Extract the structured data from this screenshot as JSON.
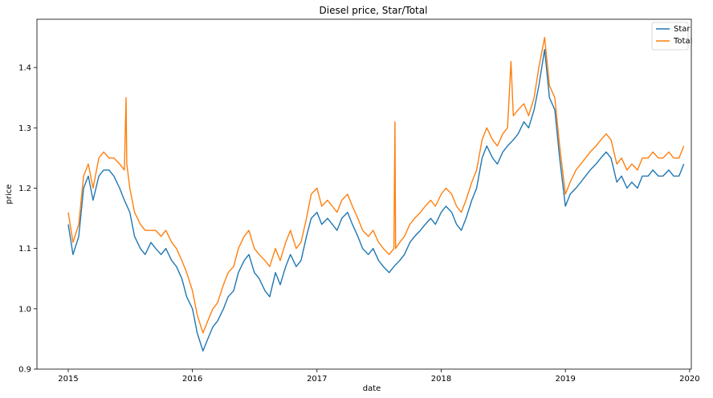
{
  "chart_data": {
    "type": "line",
    "title": "Diesel price, Star/Total",
    "xlabel": "date",
    "ylabel": "price",
    "xlim": [
      "2014-10-01",
      "2020-01-06"
    ],
    "ylim": [
      0.9,
      1.48
    ],
    "xticks": [
      "2015",
      "2016",
      "2017",
      "2018",
      "2019",
      "2020"
    ],
    "yticks": [
      "0.9",
      "1.0",
      "1.1",
      "1.2",
      "1.3",
      "1.4"
    ],
    "grid": false,
    "legend_position": "top-right",
    "series": [
      {
        "name": "Star",
        "color": "#1f77b4",
        "x": [
          "2015-01-01",
          "2015-01-15",
          "2015-02-01",
          "2015-02-15",
          "2015-03-01",
          "2015-03-15",
          "2015-04-01",
          "2015-04-15",
          "2015-05-01",
          "2015-05-15",
          "2015-06-01",
          "2015-06-15",
          "2015-07-01",
          "2015-07-15",
          "2015-08-01",
          "2015-08-15",
          "2015-09-01",
          "2015-09-15",
          "2015-10-01",
          "2015-10-15",
          "2015-11-01",
          "2015-11-15",
          "2015-12-01",
          "2015-12-15",
          "2016-01-01",
          "2016-01-15",
          "2016-02-01",
          "2016-02-15",
          "2016-03-01",
          "2016-03-15",
          "2016-04-01",
          "2016-04-15",
          "2016-05-01",
          "2016-05-15",
          "2016-06-01",
          "2016-06-15",
          "2016-07-01",
          "2016-07-15",
          "2016-08-01",
          "2016-08-15",
          "2016-09-01",
          "2016-09-15",
          "2016-10-01",
          "2016-10-15",
          "2016-11-01",
          "2016-11-15",
          "2016-12-01",
          "2016-12-15",
          "2017-01-01",
          "2017-01-15",
          "2017-02-01",
          "2017-02-15",
          "2017-03-01",
          "2017-03-15",
          "2017-04-01",
          "2017-04-15",
          "2017-05-01",
          "2017-05-15",
          "2017-06-01",
          "2017-06-15",
          "2017-07-01",
          "2017-07-15",
          "2017-08-01",
          "2017-08-15",
          "2017-09-01",
          "2017-09-15",
          "2017-10-01",
          "2017-10-15",
          "2017-11-01",
          "2017-11-15",
          "2017-12-01",
          "2017-12-15",
          "2018-01-01",
          "2018-01-15",
          "2018-02-01",
          "2018-02-15",
          "2018-03-01",
          "2018-03-15",
          "2018-04-01",
          "2018-04-15",
          "2018-05-01",
          "2018-05-15",
          "2018-06-01",
          "2018-06-15",
          "2018-07-01",
          "2018-07-15",
          "2018-08-01",
          "2018-08-15",
          "2018-09-01",
          "2018-09-15",
          "2018-10-01",
          "2018-10-15",
          "2018-11-01",
          "2018-11-15",
          "2018-12-01",
          "2018-12-15",
          "2019-01-01",
          "2019-01-15",
          "2019-02-01",
          "2019-02-15",
          "2019-03-01",
          "2019-03-15",
          "2019-04-01",
          "2019-04-15",
          "2019-05-01",
          "2019-05-15",
          "2019-06-01",
          "2019-06-15",
          "2019-07-01",
          "2019-07-15",
          "2019-08-01",
          "2019-08-15",
          "2019-09-01",
          "2019-09-15",
          "2019-10-01",
          "2019-10-15",
          "2019-11-01",
          "2019-11-15",
          "2019-12-01",
          "2019-12-15"
        ],
        "y": [
          1.14,
          1.09,
          1.12,
          1.2,
          1.22,
          1.18,
          1.22,
          1.23,
          1.23,
          1.22,
          1.2,
          1.18,
          1.16,
          1.12,
          1.1,
          1.09,
          1.11,
          1.1,
          1.09,
          1.1,
          1.08,
          1.07,
          1.05,
          1.02,
          1.0,
          0.96,
          0.93,
          0.95,
          0.97,
          0.98,
          1.0,
          1.02,
          1.03,
          1.06,
          1.08,
          1.09,
          1.06,
          1.05,
          1.03,
          1.02,
          1.06,
          1.04,
          1.07,
          1.09,
          1.07,
          1.08,
          1.12,
          1.15,
          1.16,
          1.14,
          1.15,
          1.14,
          1.13,
          1.15,
          1.16,
          1.14,
          1.12,
          1.1,
          1.09,
          1.1,
          1.08,
          1.07,
          1.06,
          1.07,
          1.08,
          1.09,
          1.11,
          1.12,
          1.13,
          1.14,
          1.15,
          1.14,
          1.16,
          1.17,
          1.16,
          1.14,
          1.13,
          1.15,
          1.18,
          1.2,
          1.25,
          1.27,
          1.25,
          1.24,
          1.26,
          1.27,
          1.28,
          1.29,
          1.31,
          1.3,
          1.33,
          1.37,
          1.43,
          1.35,
          1.33,
          1.25,
          1.17,
          1.19,
          1.2,
          1.21,
          1.22,
          1.23,
          1.24,
          1.25,
          1.26,
          1.25,
          1.21,
          1.22,
          1.2,
          1.21,
          1.2,
          1.22,
          1.22,
          1.23,
          1.22,
          1.22,
          1.23,
          1.22,
          1.22,
          1.24
        ]
      },
      {
        "name": "Total",
        "color": "#ff7f0e",
        "x": [
          "2015-01-01",
          "2015-01-15",
          "2015-02-01",
          "2015-02-15",
          "2015-03-01",
          "2015-03-15",
          "2015-04-01",
          "2015-04-15",
          "2015-05-01",
          "2015-05-15",
          "2015-06-01",
          "2015-06-15",
          "2015-06-20",
          "2015-06-22",
          "2015-07-01",
          "2015-07-15",
          "2015-08-01",
          "2015-08-15",
          "2015-09-01",
          "2015-09-15",
          "2015-10-01",
          "2015-10-15",
          "2015-11-01",
          "2015-11-15",
          "2015-12-01",
          "2015-12-15",
          "2016-01-01",
          "2016-01-15",
          "2016-02-01",
          "2016-02-15",
          "2016-03-01",
          "2016-03-15",
          "2016-04-01",
          "2016-04-15",
          "2016-05-01",
          "2016-05-15",
          "2016-06-01",
          "2016-06-15",
          "2016-07-01",
          "2016-07-15",
          "2016-08-01",
          "2016-08-15",
          "2016-09-01",
          "2016-09-15",
          "2016-10-01",
          "2016-10-15",
          "2016-11-01",
          "2016-11-15",
          "2016-12-01",
          "2016-12-15",
          "2017-01-01",
          "2017-01-15",
          "2017-02-01",
          "2017-02-15",
          "2017-03-01",
          "2017-03-15",
          "2017-04-01",
          "2017-04-15",
          "2017-05-01",
          "2017-05-15",
          "2017-06-01",
          "2017-06-15",
          "2017-07-01",
          "2017-07-15",
          "2017-08-01",
          "2017-08-15",
          "2017-08-18",
          "2017-08-20",
          "2017-09-01",
          "2017-09-15",
          "2017-10-01",
          "2017-10-15",
          "2017-11-01",
          "2017-11-15",
          "2017-12-01",
          "2017-12-15",
          "2018-01-01",
          "2018-01-15",
          "2018-02-01",
          "2018-02-15",
          "2018-03-01",
          "2018-03-15",
          "2018-04-01",
          "2018-04-15",
          "2018-05-01",
          "2018-05-15",
          "2018-06-01",
          "2018-06-15",
          "2018-07-01",
          "2018-07-15",
          "2018-07-25",
          "2018-08-01",
          "2018-08-15",
          "2018-09-01",
          "2018-09-15",
          "2018-10-01",
          "2018-10-15",
          "2018-11-01",
          "2018-11-15",
          "2018-12-01",
          "2018-12-15",
          "2019-01-01",
          "2019-01-15",
          "2019-02-01",
          "2019-02-15",
          "2019-03-01",
          "2019-03-15",
          "2019-04-01",
          "2019-04-15",
          "2019-05-01",
          "2019-05-15",
          "2019-06-01",
          "2019-06-15",
          "2019-07-01",
          "2019-07-15",
          "2019-08-01",
          "2019-08-15",
          "2019-09-01",
          "2019-09-15",
          "2019-10-01",
          "2019-10-15",
          "2019-11-01",
          "2019-11-15",
          "2019-12-01",
          "2019-12-15"
        ],
        "y": [
          1.16,
          1.11,
          1.14,
          1.22,
          1.24,
          1.2,
          1.25,
          1.26,
          1.25,
          1.25,
          1.24,
          1.23,
          1.35,
          1.24,
          1.2,
          1.16,
          1.14,
          1.13,
          1.13,
          1.13,
          1.12,
          1.13,
          1.11,
          1.1,
          1.08,
          1.06,
          1.03,
          0.99,
          0.96,
          0.98,
          1.0,
          1.01,
          1.04,
          1.06,
          1.07,
          1.1,
          1.12,
          1.13,
          1.1,
          1.09,
          1.08,
          1.07,
          1.1,
          1.08,
          1.11,
          1.13,
          1.1,
          1.11,
          1.15,
          1.19,
          1.2,
          1.17,
          1.18,
          1.17,
          1.16,
          1.18,
          1.19,
          1.17,
          1.15,
          1.13,
          1.12,
          1.13,
          1.11,
          1.1,
          1.09,
          1.1,
          1.31,
          1.1,
          1.11,
          1.12,
          1.14,
          1.15,
          1.16,
          1.17,
          1.18,
          1.17,
          1.19,
          1.2,
          1.19,
          1.17,
          1.16,
          1.18,
          1.21,
          1.23,
          1.28,
          1.3,
          1.28,
          1.27,
          1.29,
          1.3,
          1.41,
          1.32,
          1.33,
          1.34,
          1.32,
          1.35,
          1.4,
          1.45,
          1.37,
          1.35,
          1.27,
          1.19,
          1.21,
          1.23,
          1.24,
          1.25,
          1.26,
          1.27,
          1.28,
          1.29,
          1.28,
          1.24,
          1.25,
          1.23,
          1.24,
          1.23,
          1.25,
          1.25,
          1.26,
          1.25,
          1.25,
          1.26,
          1.25,
          1.25,
          1.27
        ]
      }
    ]
  }
}
